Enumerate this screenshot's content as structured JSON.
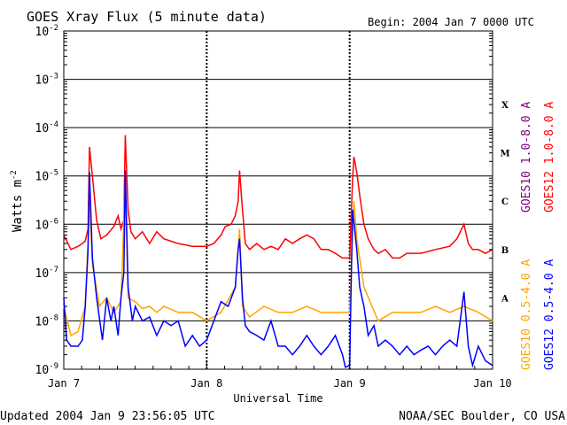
{
  "chart_data": {
    "type": "line",
    "title": "GOES Xray Flux (5 minute data)",
    "begin_label": "Begin:  2004 Jan 7 0000 UTC",
    "ylabel_main": "Watts m",
    "ylabel_exp": "-2",
    "xlabel": "Universal Time",
    "footer_left": "Updated 2004 Jan  9 23:56:05 UTC",
    "footer_right": "NOAA/SEC Boulder, CO USA",
    "y_scale": "log",
    "ylim": [
      1e-09,
      0.01
    ],
    "xlim": [
      0,
      3
    ],
    "y_ticks": [
      {
        "value": 0.01,
        "exp": "-2"
      },
      {
        "value": 0.001,
        "exp": "-3"
      },
      {
        "value": 0.0001,
        "exp": "-4"
      },
      {
        "value": 1e-05,
        "exp": "-5"
      },
      {
        "value": 1e-06,
        "exp": "-6"
      },
      {
        "value": 1e-07,
        "exp": "-7"
      },
      {
        "value": 1e-08,
        "exp": "-8"
      },
      {
        "value": 1e-09,
        "exp": "-9"
      }
    ],
    "x_ticks": [
      {
        "value": 0,
        "label": "Jan 7"
      },
      {
        "value": 1,
        "label": "Jan 8"
      },
      {
        "value": 2,
        "label": "Jan 9"
      },
      {
        "value": 3,
        "label": "Jan 10"
      }
    ],
    "flare_classes": [
      {
        "label": "X",
        "value": 0.0003
      },
      {
        "label": "M",
        "value": 3e-05
      },
      {
        "label": "C",
        "value": 3e-06
      },
      {
        "label": "B",
        "value": 3e-07
      },
      {
        "label": "A",
        "value": 3e-08
      }
    ],
    "grid": true,
    "legend_right": [
      {
        "name": "GOES10 1.0-8.0 A",
        "color": "#800080"
      },
      {
        "name": "GOES12 1.0-8.0 A",
        "color": "#ff0000"
      }
    ],
    "legend_bottom": [
      {
        "name": "GOES10 0.5-4.0 A",
        "color": "#ffa500"
      },
      {
        "name": "GOES12 0.5-4.0 A",
        "color": "#0000ff"
      }
    ],
    "series": [
      {
        "name": "GOES12 1.0-8.0 A",
        "color": "#ff0000",
        "x": [
          0,
          0.05,
          0.1,
          0.13,
          0.15,
          0.17,
          0.18,
          0.2,
          0.23,
          0.26,
          0.3,
          0.35,
          0.38,
          0.4,
          0.42,
          0.43,
          0.45,
          0.47,
          0.5,
          0.55,
          0.6,
          0.65,
          0.7,
          0.8,
          0.9,
          1.0,
          1.05,
          1.1,
          1.13,
          1.17,
          1.2,
          1.22,
          1.23,
          1.25,
          1.27,
          1.3,
          1.35,
          1.4,
          1.45,
          1.5,
          1.55,
          1.6,
          1.65,
          1.7,
          1.75,
          1.8,
          1.85,
          1.9,
          1.95,
          2.0,
          2.02,
          2.03,
          2.05,
          2.07,
          2.1,
          2.13,
          2.17,
          2.2,
          2.25,
          2.3,
          2.35,
          2.4,
          2.5,
          2.6,
          2.7,
          2.75,
          2.8,
          2.83,
          2.86,
          2.9,
          2.95,
          3.0
        ],
        "y": [
          6e-07,
          3e-07,
          3.5e-07,
          4e-07,
          4.5e-07,
          8e-07,
          4e-05,
          1e-05,
          1.2e-06,
          5e-07,
          6e-07,
          9e-07,
          1.5e-06,
          8e-07,
          1.2e-06,
          7e-05,
          2e-06,
          7e-07,
          5e-07,
          7e-07,
          4e-07,
          7e-07,
          5e-07,
          4e-07,
          3.5e-07,
          3.5e-07,
          4e-07,
          6e-07,
          9e-07,
          1e-06,
          1.5e-06,
          3e-06,
          1.3e-05,
          2e-06,
          4e-07,
          3e-07,
          4e-07,
          3e-07,
          3.5e-07,
          3e-07,
          5e-07,
          4e-07,
          5e-07,
          6e-07,
          5e-07,
          3e-07,
          3e-07,
          2.5e-07,
          2e-07,
          2e-07,
          8e-06,
          2.5e-05,
          1.2e-05,
          4e-06,
          1e-06,
          5e-07,
          3e-07,
          2.5e-07,
          3e-07,
          2e-07,
          2e-07,
          2.5e-07,
          2.5e-07,
          3e-07,
          3.5e-07,
          5e-07,
          1e-06,
          4e-07,
          3e-07,
          3e-07,
          2.5e-07,
          3e-07
        ]
      },
      {
        "name": "GOES10 0.5-4.0 A",
        "color": "#ffa500",
        "x": [
          0,
          0.05,
          0.1,
          0.15,
          0.17,
          0.18,
          0.2,
          0.25,
          0.3,
          0.35,
          0.4,
          0.43,
          0.45,
          0.5,
          0.55,
          0.6,
          0.65,
          0.7,
          0.8,
          0.9,
          1.0,
          1.1,
          1.2,
          1.23,
          1.25,
          1.3,
          1.4,
          1.5,
          1.6,
          1.7,
          1.8,
          1.9,
          2.0,
          2.03,
          2.05,
          2.1,
          2.2,
          2.3,
          2.4,
          2.5,
          2.6,
          2.7,
          2.8,
          2.9,
          3.0
        ],
        "y": [
          2e-08,
          5e-09,
          6e-09,
          2e-08,
          5e-07,
          3e-06,
          1.5e-07,
          2e-08,
          3e-08,
          1.5e-08,
          2.5e-08,
          8e-06,
          3e-08,
          2.5e-08,
          1.8e-08,
          2e-08,
          1.5e-08,
          2e-08,
          1.5e-08,
          1.5e-08,
          1e-08,
          1.5e-08,
          5e-08,
          8e-07,
          2e-08,
          1.2e-08,
          2e-08,
          1.5e-08,
          1.5e-08,
          2e-08,
          1.5e-08,
          1.5e-08,
          1.5e-08,
          3e-06,
          5e-07,
          5e-08,
          1e-08,
          1.5e-08,
          1.5e-08,
          1.5e-08,
          2e-08,
          1.5e-08,
          2e-08,
          1.5e-08,
          1e-08
        ]
      },
      {
        "name": "GOES12 0.5-4.0 A",
        "color": "#0000ff",
        "x": [
          0,
          0.02,
          0.05,
          0.1,
          0.13,
          0.15,
          0.17,
          0.18,
          0.2,
          0.23,
          0.27,
          0.3,
          0.33,
          0.35,
          0.38,
          0.4,
          0.42,
          0.43,
          0.45,
          0.48,
          0.5,
          0.55,
          0.6,
          0.65,
          0.7,
          0.75,
          0.8,
          0.85,
          0.9,
          0.95,
          1.0,
          1.05,
          1.1,
          1.15,
          1.2,
          1.22,
          1.23,
          1.25,
          1.27,
          1.3,
          1.35,
          1.4,
          1.45,
          1.5,
          1.55,
          1.6,
          1.65,
          1.7,
          1.75,
          1.8,
          1.85,
          1.9,
          1.95,
          1.97,
          2.0,
          2.02,
          2.03,
          2.05,
          2.07,
          2.1,
          2.13,
          2.17,
          2.2,
          2.25,
          2.3,
          2.35,
          2.4,
          2.45,
          2.5,
          2.55,
          2.6,
          2.65,
          2.7,
          2.75,
          2.8,
          2.83,
          2.86,
          2.9,
          2.95,
          3.0
        ],
        "y": [
          3e-08,
          4e-09,
          3e-09,
          3e-09,
          4e-09,
          2e-08,
          3e-07,
          1.2e-05,
          2e-07,
          3e-08,
          4e-09,
          3e-08,
          1e-08,
          2e-08,
          5e-09,
          3e-08,
          1e-07,
          1.3e-05,
          5e-08,
          1e-08,
          2e-08,
          1e-08,
          1.2e-08,
          5e-09,
          1e-08,
          8e-09,
          1e-08,
          3e-09,
          5e-09,
          3e-09,
          4e-09,
          1e-08,
          2.5e-08,
          2e-08,
          5e-08,
          3e-07,
          5e-07,
          3e-08,
          8e-09,
          6e-09,
          5e-09,
          4e-09,
          1e-08,
          3e-09,
          3e-09,
          2e-09,
          3e-09,
          5e-09,
          3e-09,
          2e-09,
          3e-09,
          5e-09,
          2e-09,
          1.1e-09,
          1.2e-09,
          2e-06,
          1.1e-06,
          3e-07,
          5e-08,
          2e-08,
          5e-09,
          8e-09,
          3e-09,
          4e-09,
          3e-09,
          2e-09,
          3e-09,
          2e-09,
          2.5e-09,
          3e-09,
          2e-09,
          3e-09,
          4e-09,
          3e-09,
          4e-08,
          3e-09,
          1.2e-09,
          3e-09,
          1.5e-09,
          1.2e-09
        ]
      }
    ]
  }
}
